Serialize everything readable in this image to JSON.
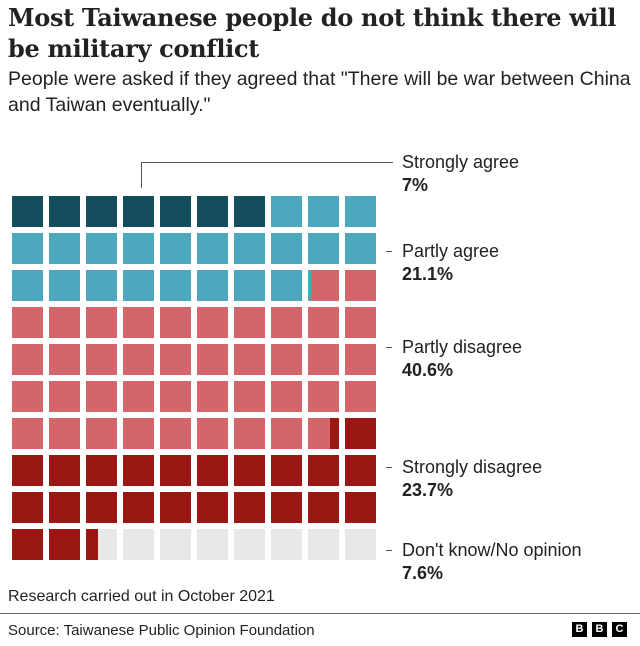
{
  "header": {
    "title": "Most Taiwanese people do not think there will be military conflict",
    "subtitle": "People were asked if they agreed that \"There will be war between China and Taiwan eventually.\""
  },
  "legend": [
    {
      "name": "Strongly agree",
      "value": "7%"
    },
    {
      "name": "Partly agree",
      "value": "21.1%"
    },
    {
      "name": "Partly disagree",
      "value": "40.6%"
    },
    {
      "name": "Strongly disagree",
      "value": "23.7%"
    },
    {
      "name": "Don't know/No opinion",
      "value": "7.6%"
    }
  ],
  "footer": {
    "note": "Research carried out in October 2021",
    "source": "Source: Taiwanese Public Opinion Foundation",
    "logo": [
      "B",
      "B",
      "C"
    ]
  },
  "colors": {
    "strongly_agree": "#144d5e",
    "partly_agree": "#4ca8bd",
    "partly_disagree": "#d4656a",
    "strongly_disagree": "#9b1714",
    "dont_know": "#e8e8e8"
  },
  "chart_data": {
    "type": "waffle",
    "title": "Most Taiwanese people do not think there will be military conflict",
    "subtitle": "People were asked if they agreed that \"There will be war between China and Taiwan eventually.\"",
    "grid": {
      "rows": 10,
      "cols": 10,
      "unit": "1% per square"
    },
    "categories": [
      "Strongly agree",
      "Partly agree",
      "Partly disagree",
      "Strongly disagree",
      "Don't know/No opinion"
    ],
    "values": [
      7,
      21.1,
      40.6,
      23.7,
      7.6
    ],
    "colors": [
      "#144d5e",
      "#4ca8bd",
      "#d4656a",
      "#9b1714",
      "#e8e8e8"
    ],
    "legend_position": "right",
    "annotation": "Research carried out in October 2021",
    "source": "Taiwanese Public Opinion Foundation"
  }
}
